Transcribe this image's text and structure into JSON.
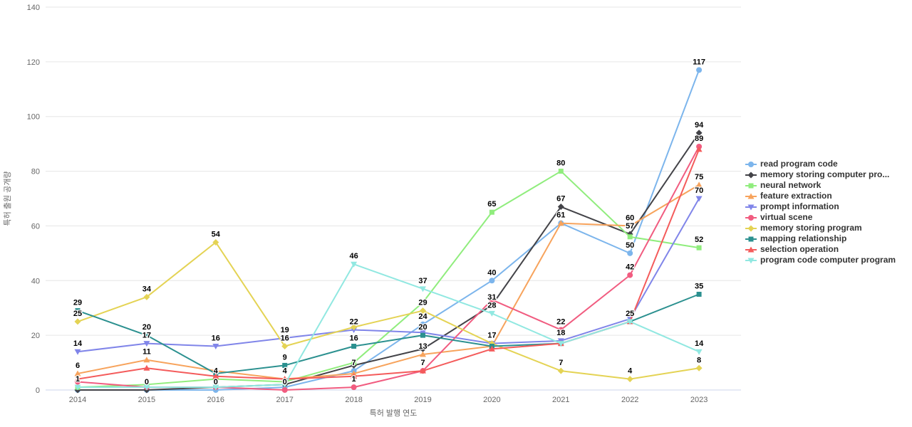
{
  "chart_data": {
    "type": "line",
    "title": "",
    "xlabel": "특허 발행 연도",
    "ylabel": "특허 출원 공개량",
    "categories": [
      "2014",
      "2015",
      "2016",
      "2017",
      "2018",
      "2019",
      "2020",
      "2021",
      "2022",
      "2023"
    ],
    "ylim": [
      0,
      140
    ],
    "yticks": [
      0,
      20,
      40,
      60,
      80,
      100,
      120,
      140
    ],
    "grid": "horizontal-only",
    "legend_position": "right",
    "series": [
      {
        "name": "read program code",
        "color": "#7cb5ec",
        "marker": "circle",
        "values": [
          0,
          0,
          0,
          1,
          7,
          24,
          40,
          61,
          50,
          117
        ],
        "labeled_indices": [
          1,
          2,
          4,
          5,
          6,
          7,
          8,
          9
        ]
      },
      {
        "name": "memory storing computer pro...",
        "color": "#434348",
        "marker": "diamond",
        "values": [
          0,
          0,
          1,
          2,
          9,
          15,
          31,
          67,
          57,
          94
        ],
        "labeled_indices": [
          6,
          7,
          8,
          9
        ]
      },
      {
        "name": "neural network",
        "color": "#90ed7d",
        "marker": "square",
        "values": [
          1,
          2,
          4,
          3,
          10,
          32,
          65,
          80,
          56,
          52
        ],
        "labeled_indices": [
          0,
          2,
          6,
          7,
          9
        ]
      },
      {
        "name": "feature extraction",
        "color": "#f7a35c",
        "marker": "triangle",
        "values": [
          6,
          11,
          7,
          4,
          6,
          13,
          16,
          61,
          60,
          75
        ],
        "labeled_indices": [
          0,
          1,
          3,
          5,
          8,
          9
        ]
      },
      {
        "name": "prompt information",
        "color": "#8085e9",
        "marker": "triangle-down",
        "values": [
          14,
          17,
          16,
          19,
          22,
          21,
          17,
          18,
          26,
          70
        ],
        "labeled_indices": [
          0,
          1,
          2,
          3,
          4,
          7,
          9
        ]
      },
      {
        "name": "virtual scene",
        "color": "#f15c80",
        "marker": "circle",
        "values": [
          3,
          1,
          1,
          0,
          1,
          7,
          33,
          22,
          42,
          89
        ],
        "labeled_indices": [
          3,
          4,
          5,
          7,
          8,
          9
        ]
      },
      {
        "name": "memory storing program",
        "color": "#e4d354",
        "marker": "diamond",
        "values": [
          25,
          34,
          54,
          16,
          23,
          29,
          17,
          7,
          4,
          8
        ],
        "labeled_indices": [
          0,
          1,
          2,
          3,
          5,
          6,
          7,
          8,
          9
        ]
      },
      {
        "name": "mapping relationship",
        "color": "#2b908f",
        "marker": "square",
        "values": [
          29,
          20,
          6,
          9,
          16,
          20,
          16,
          17,
          25,
          35
        ],
        "labeled_indices": [
          0,
          1,
          3,
          4,
          5,
          8,
          9
        ]
      },
      {
        "name": "selection operation",
        "color": "#f45b5b",
        "marker": "triangle",
        "values": [
          4,
          8,
          5,
          4,
          5,
          7,
          15,
          17,
          25,
          88
        ],
        "labeled_indices": []
      },
      {
        "name": "program code computer program",
        "color": "#91e8e1",
        "marker": "triangle-down",
        "values": [
          1,
          1,
          1,
          2,
          46,
          37,
          28,
          17,
          25,
          14
        ],
        "labeled_indices": [
          4,
          5,
          6,
          9
        ]
      }
    ]
  }
}
